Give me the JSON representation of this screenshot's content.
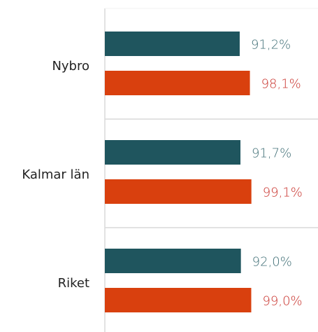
{
  "chart_data": {
    "type": "hbar",
    "categories": [
      "Nybro",
      "Kalmar län",
      "Riket"
    ],
    "series": [
      {
        "color": "#1f555e",
        "label_color": "#3f6e75",
        "values": [
          91.2,
          91.7,
          92.0
        ],
        "value_labels": [
          "91,2%",
          "91,7%",
          "92,0%"
        ]
      },
      {
        "color": "#d9400e",
        "label_color": "#c8312b",
        "values": [
          98.1,
          99.1,
          99.0
        ],
        "value_labels": [
          "98,1%",
          "99,1%",
          "99,0%"
        ]
      }
    ],
    "xlim": [
      0,
      100
    ]
  }
}
